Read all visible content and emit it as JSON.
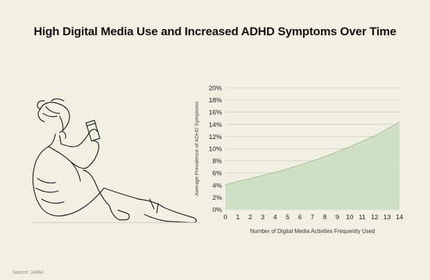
{
  "title": "High Digital Media Use and Increased ADHD Symptoms Over Time",
  "source": "Source: JAMA",
  "illustration": {
    "icon": "person-reading-phone-illustration"
  },
  "colors": {
    "background": "#f2f0e3",
    "area_fill": "#c9ddbf",
    "area_line": "#9fbf93",
    "grid": "#c9ccc0",
    "text": "#1b1b1b"
  },
  "chart_data": {
    "type": "area",
    "title": "High Digital Media Use and Increased ADHD Symptoms Over Time",
    "xlabel": "Number of Digital Media Activities Frequently Used",
    "ylabel": "Average Prevalence of ADHD Symptoms",
    "x": [
      0,
      1,
      2,
      3,
      4,
      5,
      6,
      7,
      8,
      9,
      10,
      11,
      12,
      13,
      14
    ],
    "values": [
      4.1,
      4.6,
      5.1,
      5.6,
      6.1,
      6.7,
      7.3,
      8.0,
      8.7,
      9.5,
      10.3,
      11.2,
      12.1,
      13.2,
      14.4
    ],
    "y_ticks": [
      "0%",
      "2%",
      "4%",
      "6%",
      "8%",
      "10%",
      "12%",
      "14%",
      "16%",
      "18%",
      "20%"
    ],
    "x_ticks": [
      "0",
      "1",
      "2",
      "3",
      "4",
      "5",
      "6",
      "7",
      "8",
      "9",
      "10",
      "11",
      "12",
      "13",
      "14"
    ],
    "xlim": [
      0,
      14
    ],
    "ylim": [
      0,
      20
    ],
    "grid": true
  }
}
